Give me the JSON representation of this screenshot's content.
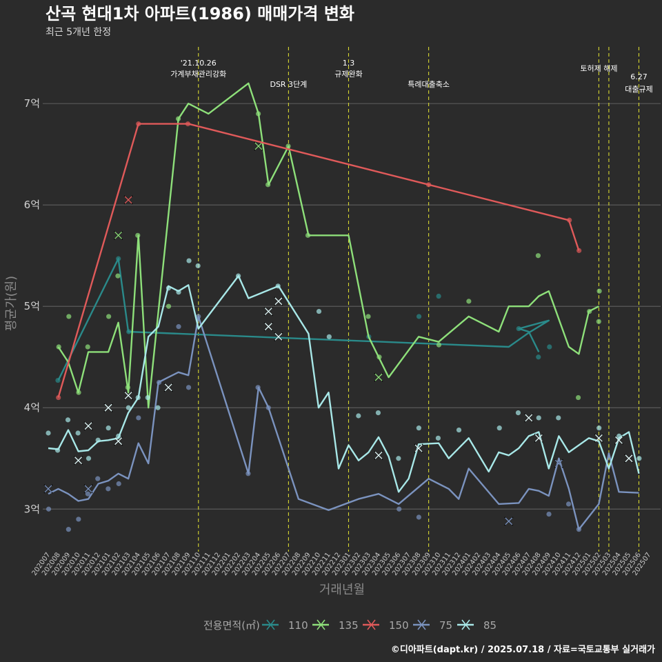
{
  "chart_data": {
    "type": "line",
    "title": "산곡 현대1차 아파트(1986) 매매가격 변화",
    "subtitle": "최근 5개년 한정",
    "xlabel": "거래년월",
    "ylabel": "평균가(원)",
    "caption": "©디아파트(dapt.kr) / 2025.07.18 / 자료=국토교통부 실거래가",
    "legend_title": "전용면적(㎡)",
    "legend_position": "bottom",
    "grid": true,
    "ylim": [
      2.58,
      7.6
    ],
    "y_ticks": [
      3,
      4,
      5,
      6,
      7
    ],
    "y_tick_labels": [
      "3억",
      "4억",
      "5억",
      "6억",
      "7억"
    ],
    "x_months": [
      "202007",
      "202008",
      "202009",
      "202010",
      "202011",
      "202012",
      "202101",
      "202102",
      "202103",
      "202104",
      "202105",
      "202106",
      "202107",
      "202108",
      "202109",
      "202110",
      "202111",
      "202112",
      "202201",
      "202202",
      "202203",
      "202204",
      "202205",
      "202206",
      "202207",
      "202208",
      "202209",
      "202210",
      "202211",
      "202212",
      "202301",
      "202302",
      "202303",
      "202304",
      "202305",
      "202306",
      "202307",
      "202308",
      "202309",
      "202310",
      "202311",
      "202312",
      "202401",
      "202402",
      "202403",
      "202404",
      "202405",
      "202406",
      "202407",
      "202408",
      "202409",
      "202410",
      "202411",
      "202412",
      "202501",
      "202502",
      "202503",
      "202504",
      "202505",
      "202506",
      "202507"
    ],
    "events": [
      {
        "month": "202110",
        "lines": [
          "'21.10.26",
          "가계부채관리강화"
        ]
      },
      {
        "month": "202207",
        "lines": [
          "DSR 3단계"
        ]
      },
      {
        "month": "202301",
        "lines": [
          "1.3",
          "규제완화"
        ]
      },
      {
        "month": "202309",
        "lines": [
          "특례대출축소"
        ]
      },
      {
        "month": "202502",
        "lines": [
          "토허제 해제"
        ]
      },
      {
        "month": "202503",
        "lines": [
          ""
        ]
      },
      {
        "month": "202506",
        "lines": [
          "6.27",
          "대출규제"
        ]
      }
    ],
    "series": [
      {
        "name": "110",
        "color": "#2a8a8a",
        "points": [
          [
            "202008",
            4.27
          ],
          [
            "202102",
            5.47
          ],
          [
            "202103",
            4.75
          ],
          [
            "202405",
            4.6
          ],
          [
            "202407",
            4.74
          ],
          [
            "202409",
            4.86
          ],
          [
            "202406",
            4.78
          ],
          [
            "202407",
            4.75
          ],
          [
            "202408",
            4.55
          ]
        ],
        "scatter": [
          [
            "202008",
            4.27
          ],
          [
            "202102",
            5.47
          ],
          [
            "202103",
            4.75
          ],
          [
            "202303",
            4.7
          ],
          [
            "202308",
            4.9
          ],
          [
            "202310",
            5.1
          ],
          [
            "202406",
            4.78
          ],
          [
            "202408",
            4.5
          ],
          [
            "202409",
            4.6
          ]
        ]
      },
      {
        "name": "135",
        "color": "#8ee07a",
        "points": [
          [
            "202008",
            4.6
          ],
          [
            "202009",
            4.45
          ],
          [
            "202010",
            4.15
          ],
          [
            "202011",
            4.55
          ],
          [
            "202012",
            4.55
          ],
          [
            "202101",
            4.55
          ],
          [
            "202102",
            4.84
          ],
          [
            "202103",
            4.15
          ],
          [
            "202104",
            5.7
          ],
          [
            "202105",
            4.0
          ],
          [
            "202108",
            6.85
          ],
          [
            "202109",
            7.0
          ],
          [
            "202111",
            6.9
          ],
          [
            "202203",
            7.2
          ],
          [
            "202204",
            6.9
          ],
          [
            "202205",
            6.2
          ],
          [
            "202207",
            6.58
          ],
          [
            "202209",
            5.7
          ],
          [
            "202301",
            5.7
          ],
          [
            "202303",
            4.7
          ],
          [
            "202305",
            4.3
          ],
          [
            "202308",
            4.7
          ],
          [
            "202310",
            4.65
          ],
          [
            "202401",
            4.9
          ],
          [
            "202403",
            4.8
          ],
          [
            "202404",
            4.75
          ],
          [
            "202405",
            5.0
          ],
          [
            "202407",
            5.0
          ],
          [
            "202408",
            5.1
          ],
          [
            "202409",
            5.15
          ],
          [
            "202411",
            4.6
          ],
          [
            "202412",
            4.53
          ],
          [
            "202501",
            4.95
          ],
          [
            "202502",
            5.0
          ]
        ],
        "scatter": [
          [
            "202008",
            4.6
          ],
          [
            "202009",
            4.9
          ],
          [
            "202010",
            4.15
          ],
          [
            "202011",
            4.6
          ],
          [
            "202101",
            4.9
          ],
          [
            "202102",
            5.3
          ],
          [
            "202103",
            4.2
          ],
          [
            "202104",
            5.7
          ],
          [
            "202107",
            5.0
          ],
          [
            "202108",
            6.85
          ],
          [
            "202204",
            6.9
          ],
          [
            "202205",
            6.2
          ],
          [
            "202207",
            6.58
          ],
          [
            "202209",
            5.7
          ],
          [
            "202303",
            4.9
          ],
          [
            "202304",
            4.5
          ],
          [
            "202310",
            4.62
          ],
          [
            "202401",
            5.05
          ],
          [
            "202408",
            5.5
          ],
          [
            "202412",
            4.1
          ],
          [
            "202501",
            4.95
          ],
          [
            "202502",
            5.15
          ],
          [
            "202502",
            4.85
          ]
        ],
        "crosses": [
          [
            "202102",
            5.7
          ],
          [
            "202204",
            6.58
          ],
          [
            "202304",
            4.3
          ]
        ]
      },
      {
        "name": "150",
        "color": "#e05a5a",
        "points": [
          [
            "202008",
            4.1
          ],
          [
            "202104",
            6.8
          ],
          [
            "202109",
            6.8
          ],
          [
            "202309",
            6.2
          ],
          [
            "202411",
            5.85
          ],
          [
            "202412",
            5.55
          ]
        ],
        "scatter": [
          [
            "202008",
            4.1
          ],
          [
            "202104",
            6.8
          ],
          [
            "202109",
            6.8
          ],
          [
            "202309",
            6.2
          ],
          [
            "202411",
            5.85
          ],
          [
            "202412",
            5.55
          ]
        ],
        "crosses": [
          [
            "202103",
            6.05
          ]
        ]
      },
      {
        "name": "75",
        "color": "#7b93bf",
        "points": [
          [
            "202007",
            3.15
          ],
          [
            "202008",
            3.2
          ],
          [
            "202009",
            3.15
          ],
          [
            "202010",
            3.08
          ],
          [
            "202011",
            3.1
          ],
          [
            "202012",
            3.25
          ],
          [
            "202101",
            3.28
          ],
          [
            "202102",
            3.35
          ],
          [
            "202103",
            3.3
          ],
          [
            "202104",
            3.65
          ],
          [
            "202105",
            3.45
          ],
          [
            "202106",
            4.25
          ],
          [
            "202107",
            4.3
          ],
          [
            "202108",
            4.35
          ],
          [
            "202109",
            4.32
          ],
          [
            "202110",
            4.9
          ],
          [
            "202203",
            3.35
          ],
          [
            "202204",
            4.2
          ],
          [
            "202205",
            4.0
          ],
          [
            "202208",
            3.1
          ],
          [
            "202211",
            2.99
          ],
          [
            "202302",
            3.1
          ],
          [
            "202304",
            3.15
          ],
          [
            "202306",
            3.05
          ],
          [
            "202309",
            3.3
          ],
          [
            "202311",
            3.2
          ],
          [
            "202312",
            3.1
          ],
          [
            "202401",
            3.4
          ],
          [
            "202404",
            3.05
          ],
          [
            "202406",
            3.06
          ],
          [
            "202407",
            3.2
          ],
          [
            "202408",
            3.18
          ],
          [
            "202409",
            3.13
          ],
          [
            "202410",
            3.5
          ],
          [
            "202411",
            3.2
          ],
          [
            "202412",
            2.8
          ],
          [
            "202502",
            3.05
          ],
          [
            "202503",
            3.55
          ],
          [
            "202504",
            3.17
          ],
          [
            "202506",
            3.16
          ]
        ],
        "scatter": [
          [
            "202007",
            3.0
          ],
          [
            "202009",
            2.8
          ],
          [
            "202010",
            2.9
          ],
          [
            "202011",
            3.15
          ],
          [
            "202012",
            3.3
          ],
          [
            "202101",
            3.2
          ],
          [
            "202102",
            3.25
          ],
          [
            "202104",
            3.9
          ],
          [
            "202106",
            4.25
          ],
          [
            "202108",
            4.8
          ],
          [
            "202109",
            4.2
          ],
          [
            "202110",
            4.9
          ],
          [
            "202203",
            3.35
          ],
          [
            "202204",
            4.2
          ],
          [
            "202205",
            4.0
          ],
          [
            "202306",
            3.0
          ],
          [
            "202308",
            2.92
          ],
          [
            "202409",
            2.95
          ],
          [
            "202411",
            3.05
          ],
          [
            "202412",
            2.8
          ]
        ],
        "crosses": [
          [
            "202007",
            3.2
          ],
          [
            "202011",
            3.2
          ],
          [
            "202405",
            2.88
          ],
          [
            "202410",
            3.45
          ]
        ]
      },
      {
        "name": "85",
        "color": "#a8e8e8",
        "points": [
          [
            "202007",
            3.6
          ],
          [
            "202008",
            3.59
          ],
          [
            "202009",
            3.78
          ],
          [
            "202010",
            3.57
          ],
          [
            "202011",
            3.58
          ],
          [
            "202012",
            3.67
          ],
          [
            "202101",
            3.68
          ],
          [
            "202102",
            3.7
          ],
          [
            "202103",
            3.95
          ],
          [
            "202104",
            4.1
          ],
          [
            "202105",
            4.7
          ],
          [
            "202106",
            4.8
          ],
          [
            "202107",
            5.2
          ],
          [
            "202108",
            5.15
          ],
          [
            "202109",
            5.21
          ],
          [
            "202110",
            4.78
          ],
          [
            "202202",
            5.3
          ],
          [
            "202203",
            5.08
          ],
          [
            "202206",
            5.2
          ],
          [
            "202209",
            4.73
          ],
          [
            "202210",
            4.0
          ],
          [
            "202211",
            4.15
          ],
          [
            "202212",
            3.4
          ],
          [
            "202301",
            3.63
          ],
          [
            "202302",
            3.48
          ],
          [
            "202303",
            3.56
          ],
          [
            "202304",
            3.71
          ],
          [
            "202305",
            3.52
          ],
          [
            "202306",
            3.17
          ],
          [
            "202307",
            3.3
          ],
          [
            "202308",
            3.64
          ],
          [
            "202310",
            3.65
          ],
          [
            "202311",
            3.5
          ],
          [
            "202401",
            3.7
          ],
          [
            "202403",
            3.37
          ],
          [
            "202404",
            3.56
          ],
          [
            "202405",
            3.53
          ],
          [
            "202406",
            3.6
          ],
          [
            "202407",
            3.72
          ],
          [
            "202408",
            3.76
          ],
          [
            "202409",
            3.4
          ],
          [
            "202410",
            3.72
          ],
          [
            "202411",
            3.56
          ],
          [
            "202501",
            3.7
          ],
          [
            "202502",
            3.67
          ],
          [
            "202503",
            3.4
          ],
          [
            "202504",
            3.7
          ],
          [
            "202505",
            3.76
          ],
          [
            "202506",
            3.35
          ]
        ],
        "scatter": [
          [
            "202007",
            3.75
          ],
          [
            "202008",
            3.58
          ],
          [
            "202009",
            3.88
          ],
          [
            "202010",
            3.75
          ],
          [
            "202011",
            3.5
          ],
          [
            "202012",
            3.68
          ],
          [
            "202101",
            3.8
          ],
          [
            "202102",
            3.72
          ],
          [
            "202103",
            4.0
          ],
          [
            "202104",
            4.1
          ],
          [
            "202105",
            4.1
          ],
          [
            "202106",
            4.0
          ],
          [
            "202107",
            5.18
          ],
          [
            "202108",
            5.14
          ],
          [
            "202109",
            5.45
          ],
          [
            "202110",
            5.4
          ],
          [
            "202202",
            5.3
          ],
          [
            "202206",
            5.2
          ],
          [
            "202210",
            4.95
          ],
          [
            "202211",
            4.7
          ],
          [
            "202302",
            3.92
          ],
          [
            "202304",
            3.95
          ],
          [
            "202306",
            3.5
          ],
          [
            "202308",
            3.8
          ],
          [
            "202310",
            3.7
          ],
          [
            "202312",
            3.78
          ],
          [
            "202404",
            3.8
          ],
          [
            "202406",
            3.95
          ],
          [
            "202408",
            3.9
          ],
          [
            "202410",
            3.9
          ],
          [
            "202502",
            3.8
          ],
          [
            "202504",
            3.72
          ],
          [
            "202506",
            3.5
          ]
        ],
        "crosses": [
          [
            "202010",
            3.48
          ],
          [
            "202011",
            3.82
          ],
          [
            "202101",
            4.0
          ],
          [
            "202102",
            3.67
          ],
          [
            "202103",
            4.12
          ],
          [
            "202107",
            4.2
          ],
          [
            "202205",
            4.95
          ],
          [
            "202205",
            4.8
          ],
          [
            "202206",
            5.05
          ],
          [
            "202206",
            4.7
          ],
          [
            "202304",
            3.53
          ],
          [
            "202308",
            3.6
          ],
          [
            "202407",
            3.9
          ],
          [
            "202408",
            3.7
          ],
          [
            "202502",
            3.7
          ],
          [
            "202504",
            3.68
          ],
          [
            "202505",
            3.5
          ]
        ]
      }
    ]
  }
}
